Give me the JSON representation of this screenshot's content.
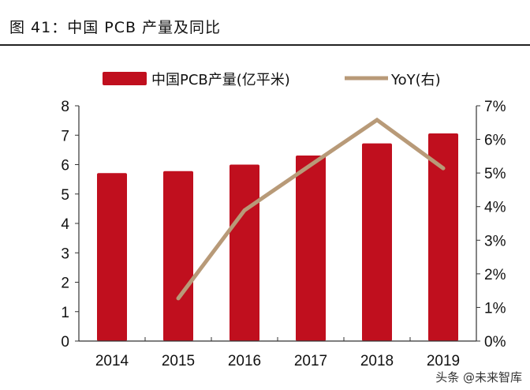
{
  "header": {
    "title": "图 41：中国 PCB 产量及同比"
  },
  "watermark": "头条 @未来智库",
  "chart_data": {
    "type": "bar+line",
    "categories": [
      "2014",
      "2015",
      "2016",
      "2017",
      "2018",
      "2019"
    ],
    "series": [
      {
        "name": "中国PCB产量(亿平米)",
        "type": "bar",
        "axis": "left",
        "color": "#c00f1e",
        "values": [
          5.71,
          5.78,
          6.0,
          6.31,
          6.72,
          7.06
        ]
      },
      {
        "name": "YoY(右)",
        "type": "line",
        "axis": "right",
        "color": "#b89a78",
        "values": [
          null,
          1.27,
          3.89,
          5.24,
          6.58,
          5.14
        ]
      }
    ],
    "left_axis": {
      "ylim": [
        0,
        8
      ],
      "ticks": [
        "0",
        "1",
        "2",
        "3",
        "4",
        "5",
        "6",
        "7",
        "8"
      ]
    },
    "right_axis": {
      "ylim": [
        0,
        7
      ],
      "ticks": [
        "0%",
        "1%",
        "2%",
        "3%",
        "4%",
        "5%",
        "6%",
        "7%"
      ]
    },
    "legend": "top",
    "grid": false
  }
}
